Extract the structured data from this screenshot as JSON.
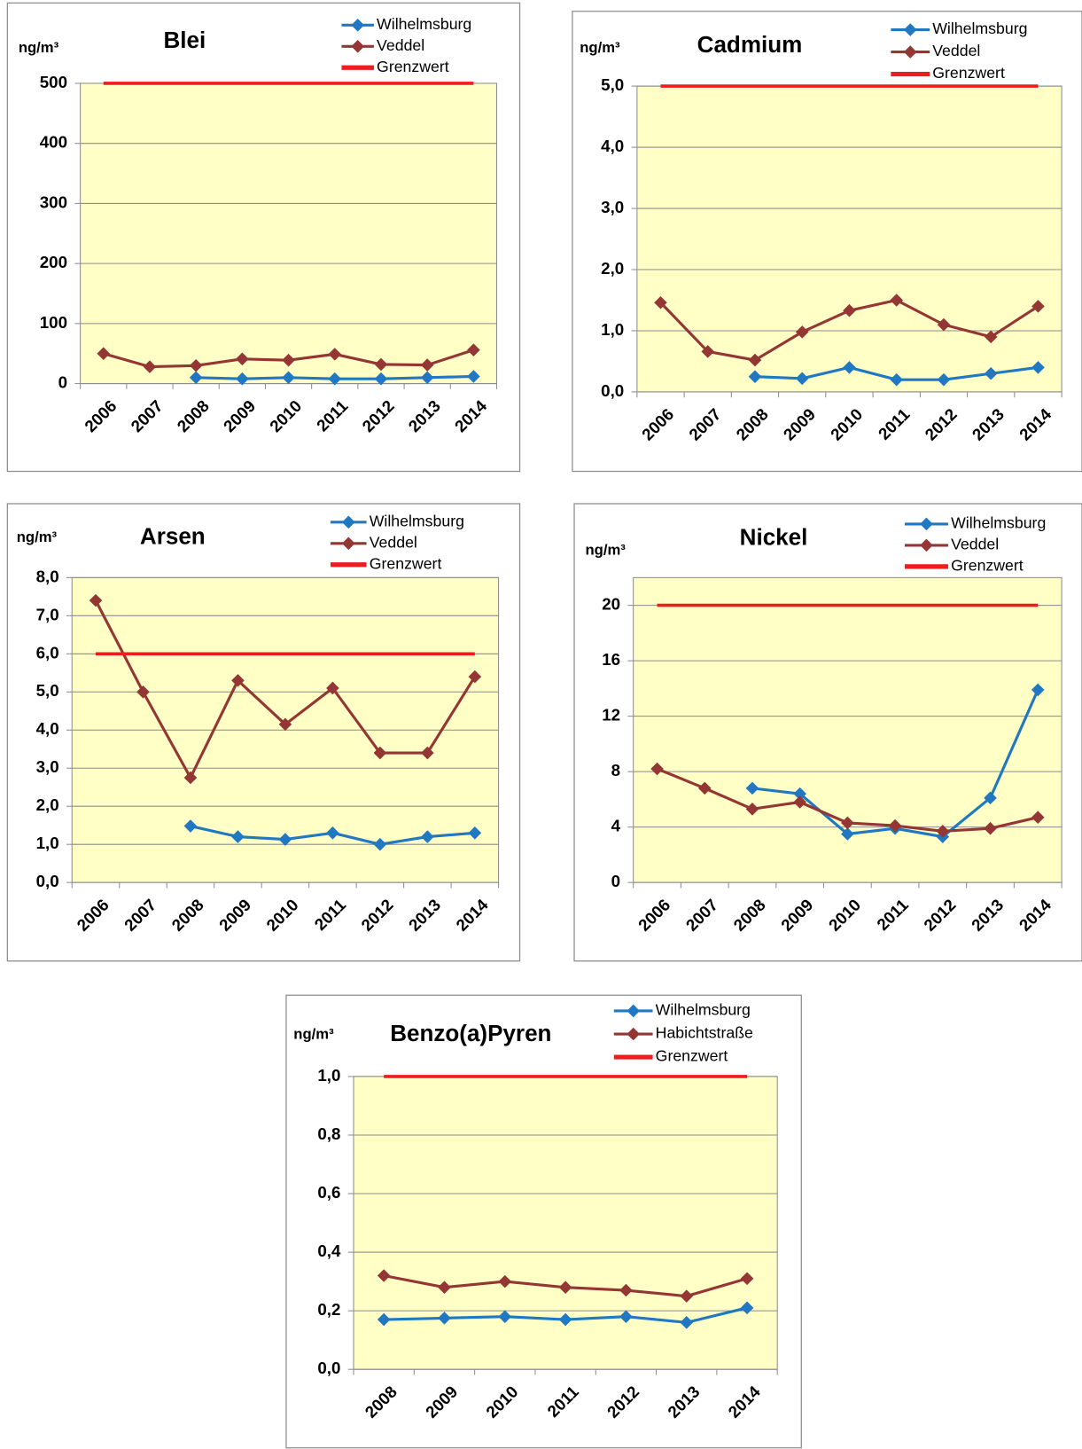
{
  "chart_data": [
    {
      "type": "line",
      "title": "Blei",
      "ylabel": "ng/m³",
      "categories": [
        "2006",
        "2007",
        "2008",
        "2009",
        "2010",
        "2011",
        "2012",
        "2013",
        "2014"
      ],
      "ylim": [
        0,
        500
      ],
      "yticks": [
        0,
        100,
        200,
        300,
        400,
        500
      ],
      "grid": true,
      "series": [
        {
          "name": "Wilhelmsburg",
          "color": "#1f78c1",
          "marker": "diamond",
          "values": [
            null,
            null,
            10,
            8,
            10,
            8,
            8,
            10,
            12
          ]
        },
        {
          "name": "Veddel",
          "color": "#943634",
          "marker": "diamond",
          "values": [
            50,
            28,
            30,
            41,
            39,
            49,
            32,
            31,
            56
          ]
        },
        {
          "name": "Grenzwert",
          "color": "#ee1c1c",
          "values": [
            500,
            500,
            500,
            500,
            500,
            500,
            500,
            500,
            500
          ]
        }
      ]
    },
    {
      "type": "line",
      "title": "Cadmium",
      "ylabel": "ng/m³",
      "categories": [
        "2006",
        "2007",
        "2008",
        "2009",
        "2010",
        "2011",
        "2012",
        "2013",
        "2014"
      ],
      "ylim": [
        0,
        5
      ],
      "yticks": [
        {
          "value": 0,
          "label": "0,0"
        },
        {
          "value": 1,
          "label": "1,0"
        },
        {
          "value": 2,
          "label": "2,0"
        },
        {
          "value": 3,
          "label": "3,0"
        },
        {
          "value": 4,
          "label": "4,0"
        },
        {
          "value": 5,
          "label": "5,0"
        }
      ],
      "grid": true,
      "series": [
        {
          "name": "Wilhelmsburg",
          "color": "#1f78c1",
          "marker": "diamond",
          "values": [
            null,
            null,
            0.25,
            0.22,
            0.4,
            0.2,
            0.2,
            0.3,
            0.4
          ]
        },
        {
          "name": "Veddel",
          "color": "#943634",
          "marker": "diamond",
          "values": [
            1.46,
            0.66,
            0.52,
            0.98,
            1.33,
            1.5,
            1.1,
            0.9,
            1.4
          ]
        },
        {
          "name": "Grenzwert",
          "color": "#ee1c1c",
          "values": [
            5,
            5,
            5,
            5,
            5,
            5,
            5,
            5,
            5
          ]
        }
      ]
    },
    {
      "type": "line",
      "title": "Arsen",
      "ylabel": "ng/m³",
      "categories": [
        "2006",
        "2007",
        "2008",
        "2009",
        "2010",
        "2011",
        "2012",
        "2013",
        "2014"
      ],
      "ylim": [
        0,
        8
      ],
      "yticks": [
        {
          "value": 0,
          "label": "0,0"
        },
        {
          "value": 1,
          "label": "1,0"
        },
        {
          "value": 2,
          "label": "2,0"
        },
        {
          "value": 3,
          "label": "3,0"
        },
        {
          "value": 4,
          "label": "4,0"
        },
        {
          "value": 5,
          "label": "5,0"
        },
        {
          "value": 6,
          "label": "6,0"
        },
        {
          "value": 7,
          "label": "7,0"
        },
        {
          "value": 8,
          "label": "8,0"
        }
      ],
      "grid": true,
      "series": [
        {
          "name": "Wilhelmsburg",
          "color": "#1f78c1",
          "marker": "diamond",
          "values": [
            null,
            null,
            1.48,
            1.2,
            1.13,
            1.3,
            1.0,
            1.2,
            1.3
          ]
        },
        {
          "name": "Veddel",
          "color": "#943634",
          "marker": "diamond",
          "values": [
            7.4,
            5.0,
            2.75,
            5.3,
            4.15,
            5.1,
            3.4,
            3.4,
            5.4
          ]
        },
        {
          "name": "Grenzwert",
          "color": "#ee1c1c",
          "values": [
            6,
            6,
            6,
            6,
            6,
            6,
            6,
            6,
            6
          ]
        }
      ]
    },
    {
      "type": "line",
      "title": "Nickel",
      "ylabel": "ng/m³",
      "categories": [
        "2006",
        "2007",
        "2008",
        "2009",
        "2010",
        "2011",
        "2012",
        "2013",
        "2014"
      ],
      "ylim": [
        0,
        22
      ],
      "yticks": [
        0,
        4,
        8,
        12,
        16,
        20
      ],
      "grid": true,
      "series": [
        {
          "name": "Wilhelmsburg",
          "color": "#1f78c1",
          "marker": "diamond",
          "values": [
            null,
            null,
            6.8,
            6.4,
            3.5,
            3.9,
            3.3,
            6.1,
            13.9
          ]
        },
        {
          "name": "Veddel",
          "color": "#943634",
          "marker": "diamond",
          "values": [
            8.2,
            6.8,
            5.3,
            5.8,
            4.3,
            4.1,
            3.7,
            3.9,
            4.7
          ]
        },
        {
          "name": "Grenzwert",
          "color": "#ee1c1c",
          "values": [
            20,
            20,
            20,
            20,
            20,
            20,
            20,
            20,
            20
          ]
        }
      ]
    },
    {
      "type": "line",
      "title": "Benzo(a)Pyren",
      "ylabel": "ng/m³",
      "categories": [
        "2008",
        "2009",
        "2010",
        "2011",
        "2012",
        "2013",
        "2014"
      ],
      "ylim": [
        0,
        1
      ],
      "yticks": [
        {
          "value": 0,
          "label": "0,0"
        },
        {
          "value": 0.2,
          "label": "0,2"
        },
        {
          "value": 0.4,
          "label": "0,4"
        },
        {
          "value": 0.6,
          "label": "0,6"
        },
        {
          "value": 0.8,
          "label": "0,8"
        },
        {
          "value": 1,
          "label": "1,0"
        }
      ],
      "grid": true,
      "series": [
        {
          "name": "Wilhelmsburg",
          "color": "#1f78c1",
          "marker": "diamond",
          "values": [
            0.17,
            0.175,
            0.18,
            0.17,
            0.18,
            0.16,
            0.21
          ]
        },
        {
          "name": "Habichtstraße",
          "color": "#943634",
          "marker": "diamond",
          "values": [
            0.32,
            0.28,
            0.3,
            0.28,
            0.27,
            0.25,
            0.31
          ]
        },
        {
          "name": "Grenzwert",
          "color": "#ee1c1c",
          "values": [
            1,
            1,
            1,
            1,
            1,
            1,
            1
          ]
        }
      ]
    }
  ]
}
